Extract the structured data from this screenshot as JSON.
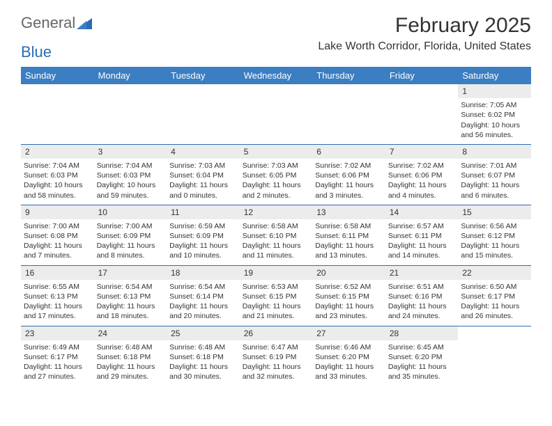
{
  "logo": {
    "part1": "General",
    "part2": "Blue"
  },
  "header": {
    "month_title": "February 2025",
    "location": "Lake Worth Corridor, Florida, United States"
  },
  "colors": {
    "header_bg": "#3b7ec1",
    "header_text": "#ffffff",
    "daynum_bg": "#ececec",
    "border": "#2a6db3",
    "text": "#333333",
    "logo_gray": "#666666",
    "logo_blue": "#2a6db3"
  },
  "weekdays": [
    "Sunday",
    "Monday",
    "Tuesday",
    "Wednesday",
    "Thursday",
    "Friday",
    "Saturday"
  ],
  "weeks": [
    {
      "nums": [
        "",
        "",
        "",
        "",
        "",
        "",
        "1"
      ],
      "cells": [
        "",
        "",
        "",
        "",
        "",
        "",
        "Sunrise: 7:05 AM\nSunset: 6:02 PM\nDaylight: 10 hours and 56 minutes."
      ]
    },
    {
      "nums": [
        "2",
        "3",
        "4",
        "5",
        "6",
        "7",
        "8"
      ],
      "cells": [
        "Sunrise: 7:04 AM\nSunset: 6:03 PM\nDaylight: 10 hours and 58 minutes.",
        "Sunrise: 7:04 AM\nSunset: 6:03 PM\nDaylight: 10 hours and 59 minutes.",
        "Sunrise: 7:03 AM\nSunset: 6:04 PM\nDaylight: 11 hours and 0 minutes.",
        "Sunrise: 7:03 AM\nSunset: 6:05 PM\nDaylight: 11 hours and 2 minutes.",
        "Sunrise: 7:02 AM\nSunset: 6:06 PM\nDaylight: 11 hours and 3 minutes.",
        "Sunrise: 7:02 AM\nSunset: 6:06 PM\nDaylight: 11 hours and 4 minutes.",
        "Sunrise: 7:01 AM\nSunset: 6:07 PM\nDaylight: 11 hours and 6 minutes."
      ]
    },
    {
      "nums": [
        "9",
        "10",
        "11",
        "12",
        "13",
        "14",
        "15"
      ],
      "cells": [
        "Sunrise: 7:00 AM\nSunset: 6:08 PM\nDaylight: 11 hours and 7 minutes.",
        "Sunrise: 7:00 AM\nSunset: 6:09 PM\nDaylight: 11 hours and 8 minutes.",
        "Sunrise: 6:59 AM\nSunset: 6:09 PM\nDaylight: 11 hours and 10 minutes.",
        "Sunrise: 6:58 AM\nSunset: 6:10 PM\nDaylight: 11 hours and 11 minutes.",
        "Sunrise: 6:58 AM\nSunset: 6:11 PM\nDaylight: 11 hours and 13 minutes.",
        "Sunrise: 6:57 AM\nSunset: 6:11 PM\nDaylight: 11 hours and 14 minutes.",
        "Sunrise: 6:56 AM\nSunset: 6:12 PM\nDaylight: 11 hours and 15 minutes."
      ]
    },
    {
      "nums": [
        "16",
        "17",
        "18",
        "19",
        "20",
        "21",
        "22"
      ],
      "cells": [
        "Sunrise: 6:55 AM\nSunset: 6:13 PM\nDaylight: 11 hours and 17 minutes.",
        "Sunrise: 6:54 AM\nSunset: 6:13 PM\nDaylight: 11 hours and 18 minutes.",
        "Sunrise: 6:54 AM\nSunset: 6:14 PM\nDaylight: 11 hours and 20 minutes.",
        "Sunrise: 6:53 AM\nSunset: 6:15 PM\nDaylight: 11 hours and 21 minutes.",
        "Sunrise: 6:52 AM\nSunset: 6:15 PM\nDaylight: 11 hours and 23 minutes.",
        "Sunrise: 6:51 AM\nSunset: 6:16 PM\nDaylight: 11 hours and 24 minutes.",
        "Sunrise: 6:50 AM\nSunset: 6:17 PM\nDaylight: 11 hours and 26 minutes."
      ]
    },
    {
      "nums": [
        "23",
        "24",
        "25",
        "26",
        "27",
        "28",
        ""
      ],
      "cells": [
        "Sunrise: 6:49 AM\nSunset: 6:17 PM\nDaylight: 11 hours and 27 minutes.",
        "Sunrise: 6:48 AM\nSunset: 6:18 PM\nDaylight: 11 hours and 29 minutes.",
        "Sunrise: 6:48 AM\nSunset: 6:18 PM\nDaylight: 11 hours and 30 minutes.",
        "Sunrise: 6:47 AM\nSunset: 6:19 PM\nDaylight: 11 hours and 32 minutes.",
        "Sunrise: 6:46 AM\nSunset: 6:20 PM\nDaylight: 11 hours and 33 minutes.",
        "Sunrise: 6:45 AM\nSunset: 6:20 PM\nDaylight: 11 hours and 35 minutes.",
        ""
      ]
    }
  ]
}
